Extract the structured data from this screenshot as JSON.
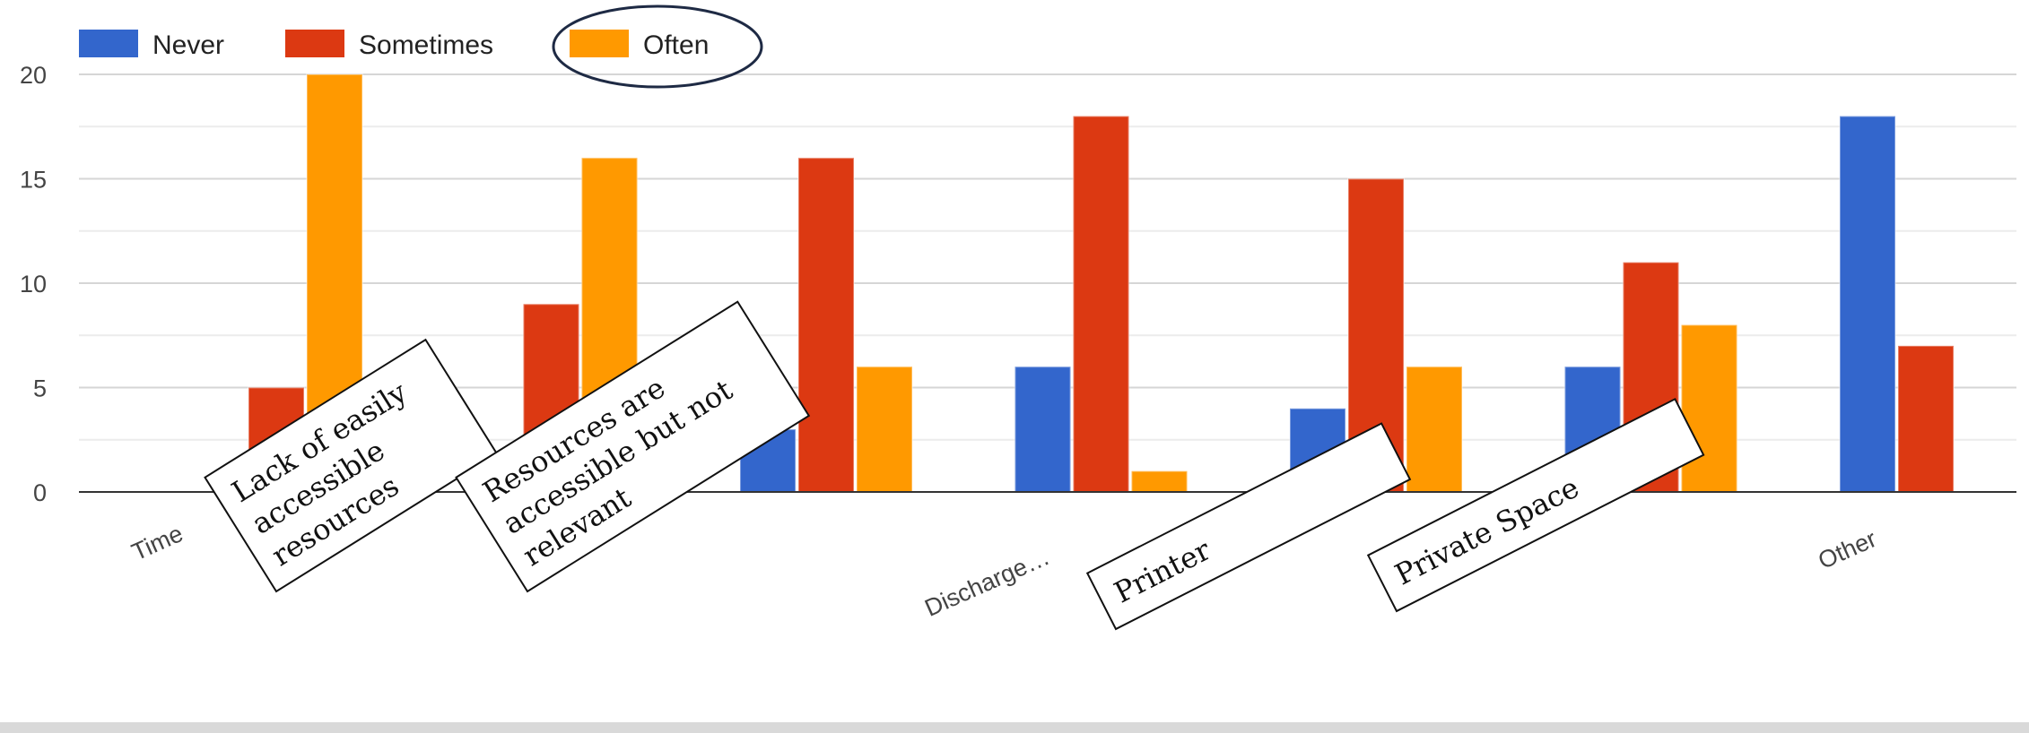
{
  "chart_data": {
    "type": "bar",
    "title": "",
    "xlabel": "",
    "ylabel": "",
    "ylim": [
      0,
      20
    ],
    "yticks": [
      0,
      5,
      10,
      15,
      20
    ],
    "grid": true,
    "legend_position": "top-left",
    "categories": [
      "Time",
      "",
      "",
      "Discharge…",
      "",
      "",
      "Other"
    ],
    "series": [
      {
        "name": "Never",
        "color": "#3366cc",
        "values": [
          0,
          0,
          3,
          6,
          4,
          6,
          18
        ]
      },
      {
        "name": "Sometimes",
        "color": "#dc3912",
        "values": [
          5,
          9,
          16,
          18,
          15,
          11,
          7
        ]
      },
      {
        "name": "Often",
        "color": "#ff9900",
        "values": [
          20,
          16,
          6,
          1,
          6,
          8,
          0
        ]
      }
    ],
    "annotations": [
      {
        "category_index": 1,
        "lines": [
          "Lack of easily",
          "accessible",
          "resources"
        ]
      },
      {
        "category_index": 2,
        "lines": [
          "Resources are",
          "accessible but not",
          "relevant"
        ]
      },
      {
        "category_index": 4,
        "lines": [
          "Printer"
        ]
      },
      {
        "category_index": 5,
        "lines": [
          "Private Space"
        ]
      }
    ],
    "highlighted_legend_entry": "Often"
  }
}
